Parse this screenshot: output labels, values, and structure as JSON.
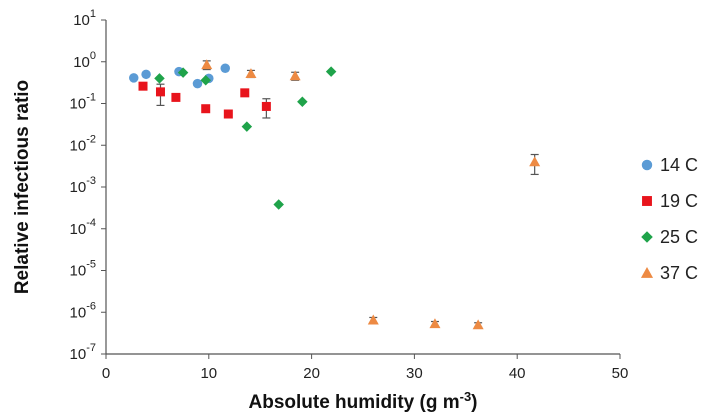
{
  "chart_data": {
    "type": "scatter",
    "title": "",
    "xlabel": "Absolute humidity (g m",
    "xlabel_sup": "-3",
    "xlabel_suffix": ")",
    "ylabel": "Relative infectious ratio",
    "xlim": [
      0,
      50
    ],
    "ylim_exponents": [
      -7,
      1
    ],
    "yscale": "log",
    "x_ticks": [
      0,
      10,
      20,
      30,
      40,
      50
    ],
    "y_tick_base": "10",
    "y_tick_exponents": [
      "1",
      "0",
      "-1",
      "-2",
      "-3",
      "-4",
      "-5",
      "-6",
      "-7"
    ],
    "grid": false,
    "legend_position": "right",
    "series": [
      {
        "name": "14 C",
        "marker": "circle",
        "color": "#5b9bd5",
        "points": [
          {
            "x": 2.7,
            "y": 0.41
          },
          {
            "x": 3.9,
            "y": 0.5
          },
          {
            "x": 7.1,
            "y": 0.58
          },
          {
            "x": 8.9,
            "y": 0.3
          },
          {
            "x": 10.0,
            "y": 0.4
          },
          {
            "x": 11.6,
            "y": 0.7
          }
        ]
      },
      {
        "name": "19 C",
        "marker": "square",
        "color": "#e8141c",
        "points": [
          {
            "x": 3.6,
            "y": 0.26
          },
          {
            "x": 5.3,
            "y": 0.19,
            "err_low": 0.09,
            "err_high": 0.29
          },
          {
            "x": 6.8,
            "y": 0.14
          },
          {
            "x": 9.7,
            "y": 0.075
          },
          {
            "x": 11.9,
            "y": 0.056
          },
          {
            "x": 13.5,
            "y": 0.18
          },
          {
            "x": 15.6,
            "y": 0.085,
            "err_low": 0.045,
            "err_high": 0.13
          }
        ]
      },
      {
        "name": "25 C",
        "marker": "diamond",
        "color": "#1fa34a",
        "points": [
          {
            "x": 5.2,
            "y": 0.4
          },
          {
            "x": 7.5,
            "y": 0.55
          },
          {
            "x": 9.7,
            "y": 0.36
          },
          {
            "x": 13.7,
            "y": 0.028
          },
          {
            "x": 16.8,
            "y": 0.00038
          },
          {
            "x": 19.1,
            "y": 0.11
          },
          {
            "x": 21.9,
            "y": 0.58
          }
        ]
      },
      {
        "name": "37 C",
        "marker": "triangle",
        "color": "#ed8a43",
        "points": [
          {
            "x": 9.8,
            "y": 0.85,
            "err_low": 0.65,
            "err_high": 1.05
          },
          {
            "x": 14.1,
            "y": 0.52,
            "err_low": 0.42,
            "err_high": 0.62
          },
          {
            "x": 18.4,
            "y": 0.46,
            "err_low": 0.36,
            "err_high": 0.56
          },
          {
            "x": 26.0,
            "y": 6.5e-07,
            "err_low": 5.5e-07,
            "err_high": 7.5e-07
          },
          {
            "x": 32.0,
            "y": 5.3e-07,
            "err_low": 4.6e-07,
            "err_high": 6e-07
          },
          {
            "x": 36.2,
            "y": 5e-07,
            "err_low": 4.4e-07,
            "err_high": 5.6e-07
          },
          {
            "x": 41.7,
            "y": 0.004,
            "err_low": 0.002,
            "err_high": 0.006
          }
        ]
      }
    ]
  }
}
